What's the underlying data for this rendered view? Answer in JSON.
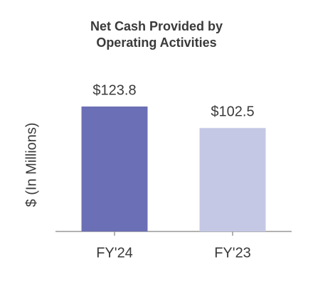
{
  "chart_data": {
    "type": "bar",
    "title": "Net Cash Provided by Operating Activities",
    "y_label": "$ (In Millions)",
    "categories": [
      "FY'24",
      "FY'23"
    ],
    "values": [
      123.8,
      102.5
    ],
    "value_labels": [
      "$123.8",
      "$102.5"
    ],
    "colors": [
      "#6b6fb5",
      "#c5c8e4"
    ],
    "ylim": [
      0,
      140
    ]
  }
}
